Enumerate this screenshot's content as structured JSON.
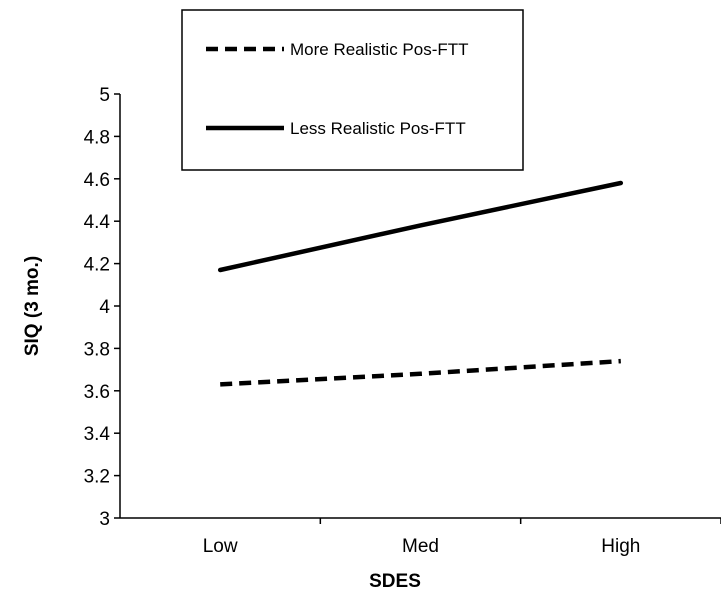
{
  "chart_data": {
    "type": "line",
    "categories": [
      "Low",
      "Med",
      "High"
    ],
    "series": [
      {
        "name": "More Realistic Pos-FTT",
        "values": [
          3.63,
          3.68,
          3.74
        ],
        "style": "dashed",
        "color": "#000000"
      },
      {
        "name": "Less Realistic Pos-FTT",
        "values": [
          4.17,
          4.38,
          4.58
        ],
        "style": "solid",
        "color": "#000000"
      }
    ],
    "xlabel": "SDES",
    "ylabel": "SIQ (3 mo.)",
    "ylim": [
      3,
      5
    ],
    "yticks": [
      "3",
      "3.2",
      "3.4",
      "3.6",
      "3.8",
      "4",
      "4.2",
      "4.4",
      "4.6",
      "4.8",
      "5"
    ],
    "grid": false,
    "legend_position": "top-left"
  }
}
